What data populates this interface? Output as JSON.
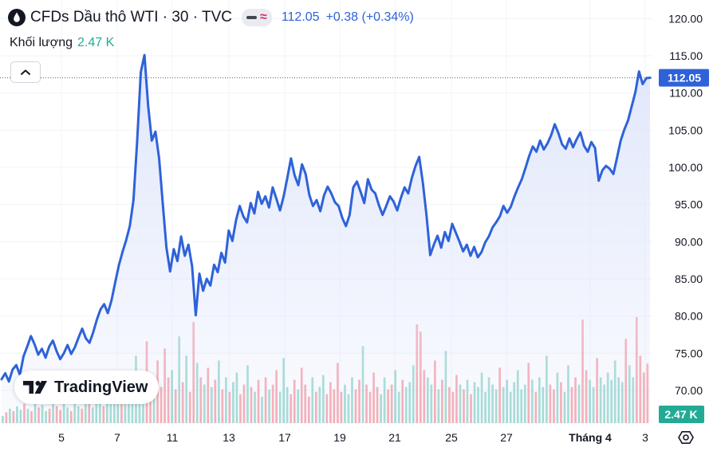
{
  "header": {
    "symbol_icon": "oil-drop-icon",
    "title": "CFDs Dầu thô WTI · 30 · TVC",
    "last_price": "112.05",
    "change": "+0.38 (+0.34%)"
  },
  "volume_legend": {
    "label": "Khối lượng",
    "value": "2.47 K"
  },
  "toolbar": {
    "collapse_icon": "chevron-up-icon",
    "settings_icon": "settings-icon"
  },
  "logo": {
    "text": "TradingView"
  },
  "colors": {
    "price_line": "#2e62d9",
    "area_fill": "#dfe6fb",
    "volume_up": "#22ab94",
    "volume_down": "#f23645",
    "last_price_label": "#2e62d9",
    "volume_label": "#22ab94"
  },
  "chart_data": {
    "type": "area",
    "ylim": [
      67.5,
      121.5
    ],
    "grid": true,
    "y_ticks": [
      "120.00",
      "115.00",
      "110.00",
      "105.00",
      "100.00",
      "95.00",
      "90.00",
      "85.00",
      "80.00",
      "75.00",
      "70.00"
    ],
    "x_ticks": [
      "5",
      "7",
      "11",
      "13",
      "17",
      "19",
      "21",
      "25",
      "27",
      "Tháng 4",
      "3"
    ],
    "last_price_label": "112.05",
    "volume_axis_label": "2.47 K",
    "series": [
      {
        "values": [
          71.5,
          72.3,
          71.2,
          72.8,
          73.4,
          72.1,
          74.6,
          75.9,
          77.3,
          76.2,
          74.8,
          75.6,
          74.4,
          75.9,
          76.7,
          75.3,
          74.2,
          75.0,
          76.1,
          74.9,
          75.8,
          77.1,
          78.3,
          77.0,
          76.4,
          77.8,
          79.5,
          80.9,
          81.6,
          80.4,
          82.1,
          84.5,
          86.8,
          88.6,
          90.2,
          92.1,
          95.6,
          103.5,
          112.8,
          115.1,
          108.3,
          103.6,
          104.8,
          101.2,
          95.1,
          89.2,
          86.0,
          89.0,
          87.4,
          90.7,
          88.1,
          89.6,
          86.7,
          80.1,
          85.7,
          83.4,
          85.0,
          84.1,
          86.9,
          85.9,
          88.5,
          87.2,
          91.5,
          90.1,
          92.9,
          94.8,
          93.4,
          92.6,
          95.2,
          93.8,
          96.7,
          95.1,
          96.1,
          94.6,
          97.3,
          95.8,
          94.2,
          96.1,
          98.6,
          101.2,
          98.9,
          97.6,
          100.4,
          99.1,
          96.3,
          94.8,
          95.6,
          94.1,
          96.2,
          97.4,
          96.5,
          95.3,
          94.8,
          93.2,
          92.1,
          93.6,
          97.3,
          98.1,
          96.7,
          95.2,
          98.4,
          97.0,
          96.5,
          94.9,
          93.6,
          94.8,
          96.1,
          95.4,
          94.2,
          95.9,
          97.3,
          96.5,
          98.6,
          100.2,
          101.4,
          97.9,
          93.5,
          88.2,
          89.6,
          90.8,
          89.2,
          91.3,
          90.1,
          92.4,
          91.2,
          90.0,
          88.7,
          89.6,
          88.1,
          89.3,
          87.9,
          88.6,
          89.9,
          90.7,
          91.9,
          92.6,
          93.4,
          94.8,
          93.9,
          94.7,
          96.1,
          97.3,
          98.4,
          99.9,
          101.5,
          102.8,
          102.1,
          103.6,
          102.4,
          103.2,
          104.3,
          105.8,
          104.6,
          103.1,
          102.5,
          103.9,
          102.7,
          103.8,
          104.7,
          102.9,
          102.1,
          103.4,
          102.6,
          98.2,
          99.6,
          100.2,
          99.8,
          99.1,
          101.3,
          103.6,
          105.1,
          106.3,
          108.2,
          110.1,
          112.9,
          111.2,
          112.0,
          112.05
        ],
        "color": "#2e62d9"
      }
    ],
    "volume": {
      "values": [
        0.3,
        0.45,
        0.6,
        0.5,
        0.7,
        0.55,
        0.8,
        0.6,
        0.5,
        0.9,
        0.65,
        0.75,
        0.5,
        0.6,
        1.1,
        0.7,
        0.55,
        0.8,
        0.65,
        0.5,
        0.9,
        0.7,
        0.6,
        1.2,
        0.8,
        0.65,
        0.9,
        1.4,
        0.7,
        0.85,
        1.0,
        1.6,
        1.3,
        0.9,
        2.1,
        1.5,
        1.1,
        2.8,
        1.6,
        1.4,
        3.4,
        1.8,
        1.2,
        2.6,
        1.5,
        3.1,
        1.9,
        2.2,
        1.4,
        3.6,
        1.7,
        2.8,
        1.3,
        4.2,
        2.5,
        1.9,
        1.6,
        2.3,
        1.5,
        1.8,
        2.6,
        1.4,
        1.9,
        1.3,
        1.7,
        2.1,
        1.2,
        1.6,
        2.4,
        1.5,
        1.3,
        1.8,
        1.1,
        1.9,
        1.4,
        1.6,
        2.2,
        1.3,
        2.7,
        1.5,
        1.2,
        1.8,
        1.4,
        2.3,
        1.6,
        1.1,
        1.9,
        1.3,
        1.5,
        2.0,
        1.2,
        1.7,
        1.4,
        2.5,
        1.3,
        1.6,
        1.2,
        1.9,
        1.4,
        1.8,
        3.2,
        1.6,
        1.3,
        2.1,
        1.5,
        1.2,
        1.9,
        1.4,
        1.6,
        2.2,
        1.3,
        1.8,
        1.5,
        1.7,
        2.4,
        4.1,
        3.8,
        2.2,
        1.9,
        1.6,
        2.6,
        1.4,
        1.8,
        3.0,
        1.5,
        1.3,
        2.0,
        1.6,
        1.4,
        1.8,
        1.2,
        1.7,
        1.5,
        2.1,
        1.3,
        1.9,
        1.6,
        1.4,
        2.3,
        1.5,
        1.8,
        1.3,
        1.7,
        2.2,
        1.4,
        1.6,
        2.5,
        1.8,
        1.3,
        1.9,
        1.5,
        2.8,
        1.6,
        1.4,
        2.1,
        1.7,
        1.3,
        2.4,
        1.5,
        1.9,
        1.6,
        4.3,
        2.2,
        1.8,
        1.5,
        2.7,
        1.9,
        1.6,
        2.1,
        1.8,
        2.6,
        1.9,
        1.7,
        3.5,
        2.4,
        1.9,
        4.4,
        2.8,
        2.1,
        2.47
      ],
      "up": [
        true,
        false,
        true,
        false,
        true,
        true,
        false,
        true,
        false,
        true,
        false,
        true,
        true,
        false,
        true,
        false,
        false,
        true,
        true,
        false,
        true,
        true,
        false,
        true,
        false,
        true,
        true,
        true,
        false,
        true,
        true,
        true,
        true,
        false,
        true,
        true,
        true,
        true,
        true,
        true,
        false,
        false,
        true,
        false,
        false,
        false,
        false,
        true,
        false,
        true,
        false,
        true,
        false,
        false,
        true,
        false,
        true,
        false,
        true,
        false,
        true,
        false,
        true,
        false,
        true,
        true,
        false,
        false,
        true,
        false,
        true,
        false,
        true,
        false,
        true,
        false,
        false,
        true,
        true,
        true,
        false,
        false,
        true,
        false,
        false,
        false,
        true,
        false,
        true,
        true,
        false,
        false,
        false,
        false,
        false,
        true,
        true,
        true,
        false,
        false,
        true,
        false,
        false,
        false,
        false,
        true,
        true,
        false,
        false,
        true,
        true,
        false,
        true,
        true,
        true,
        false,
        false,
        false,
        true,
        true,
        false,
        true,
        false,
        true,
        false,
        false,
        false,
        true,
        false,
        true,
        false,
        true,
        true,
        true,
        true,
        true,
        true,
        true,
        false,
        true,
        true,
        true,
        true,
        true,
        true,
        true,
        false,
        true,
        false,
        true,
        true,
        true,
        false,
        false,
        true,
        false,
        true,
        true,
        false,
        false,
        true,
        false,
        false,
        true,
        true,
        false,
        true,
        true,
        true,
        true,
        true,
        true,
        true,
        false,
        true,
        true
      ]
    }
  }
}
